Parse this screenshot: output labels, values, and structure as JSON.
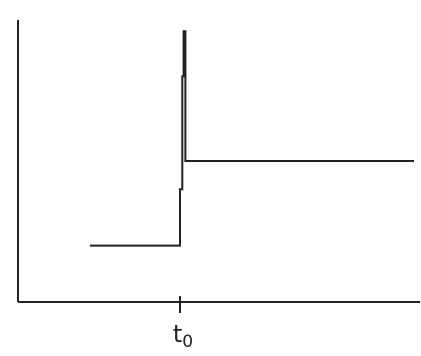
{
  "chart_data": {
    "type": "line",
    "title": "",
    "xlabel": "",
    "ylabel": "",
    "x_ticks": [
      {
        "value": 0,
        "label_base": "t",
        "label_sub": "0"
      }
    ],
    "xlim": [
      -2,
      5.2
    ],
    "ylim": [
      0,
      5
    ],
    "grid": false,
    "legend": "none",
    "series": [
      {
        "x": [
          -2.0,
          0.0,
          0.0,
          0.05,
          0.05,
          0.08,
          0.08,
          0.12,
          0.12,
          5.2
        ],
        "y": [
          1.0,
          1.0,
          2.0,
          2.0,
          4.0,
          4.0,
          4.8,
          4.8,
          2.5,
          2.5
        ]
      }
    ],
    "colors": {
      "axis": "#222222",
      "line": "#222222"
    }
  }
}
